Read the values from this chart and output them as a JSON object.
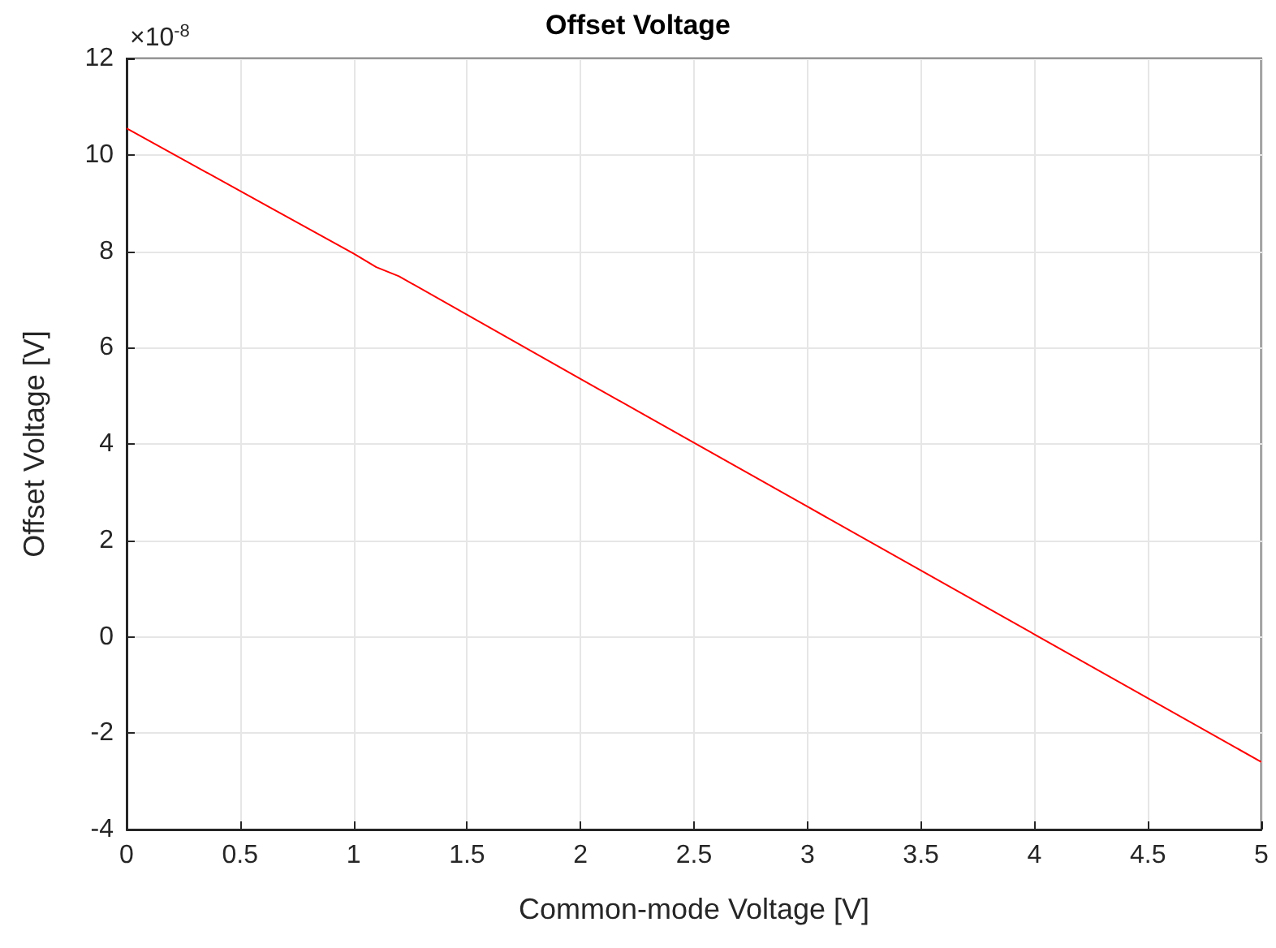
{
  "chart_data": {
    "type": "line",
    "title": "Offset Voltage",
    "xlabel": "Common-mode Voltage [V]",
    "ylabel": "Offset Voltage [V]",
    "annotations": [
      "×10$^{-8}$"
    ],
    "x": [
      0,
      1,
      1.1,
      1.2,
      2,
      3,
      4,
      5
    ],
    "series": [
      {
        "color": "#ff0000",
        "values": [
          10.55,
          7.95,
          7.67,
          7.48,
          5.35,
          2.7,
          0.05,
          -2.6
        ]
      }
    ],
    "xlim": [
      0,
      5
    ],
    "xticks": [
      0,
      0.5,
      1,
      1.5,
      2,
      2.5,
      3,
      3.5,
      4,
      4.5,
      5
    ],
    "ylim": [
      -4,
      12
    ],
    "yticks": [
      -4,
      -2,
      0,
      2,
      4,
      6,
      8,
      10,
      12
    ],
    "grid": true,
    "marker": "none",
    "line_style": "solid"
  }
}
